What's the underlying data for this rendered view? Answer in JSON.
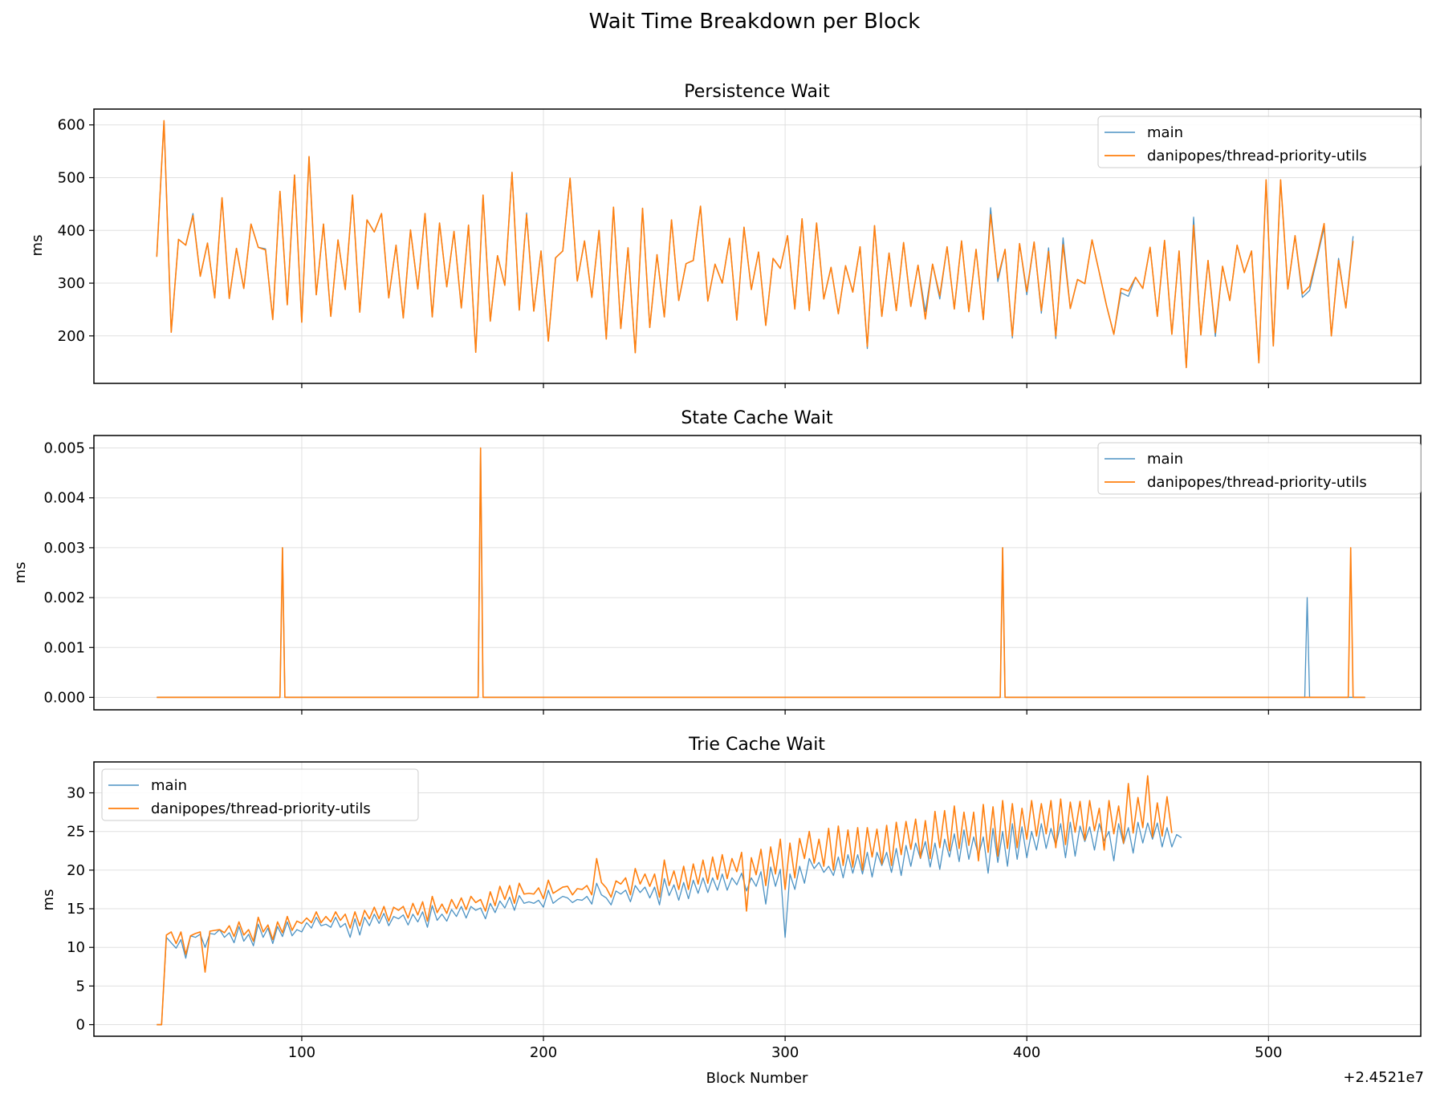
{
  "figure": {
    "title": "Wait Time Breakdown per Block",
    "xlabel": "Block Number",
    "offset_label": "+2.4521e7"
  },
  "colors": {
    "main": "#1f77b4",
    "branch": "#ff7f0e",
    "grid": "#e0e0e0"
  },
  "chart_data": [
    {
      "type": "line",
      "title": "Persistence Wait",
      "ylabel": "ms",
      "xlim": [
        14,
        563
      ],
      "ylim": [
        110,
        630
      ],
      "xticks": [
        100,
        200,
        300,
        400,
        500
      ],
      "yticks": [
        200,
        300,
        400,
        500,
        600
      ],
      "grid": true,
      "legend_position": "upper right",
      "x": {
        "start": 40,
        "end": 540,
        "step": 3
      },
      "series": [
        {
          "name": "main",
          "values": [
            350,
            608,
            207,
            383,
            372,
            432,
            313,
            376,
            272,
            462,
            271,
            366,
            290,
            412,
            368,
            365,
            231,
            474,
            259,
            505,
            226,
            539,
            278,
            412,
            237,
            382,
            288,
            467,
            245,
            420,
            397,
            432,
            272,
            372,
            234,
            401,
            289,
            432,
            236,
            414,
            293,
            398,
            253,
            410,
            169,
            467,
            228,
            352,
            296,
            510,
            249,
            433,
            247,
            361,
            190,
            348,
            361,
            499,
            304,
            380,
            273,
            400,
            194,
            444,
            214,
            367,
            168,
            442,
            216,
            354,
            236,
            420,
            267,
            337,
            343,
            446,
            266,
            336,
            300,
            385,
            230,
            406,
            288,
            359,
            220,
            347,
            328,
            390,
            251,
            422,
            248,
            414,
            270,
            330,
            242,
            333,
            283,
            369,
            176,
            409,
            237,
            357,
            248,
            377,
            256,
            334,
            246,
            336,
            270,
            369,
            251,
            380,
            246,
            364,
            231,
            443,
            303,
            364,
            196,
            375,
            278,
            378,
            243,
            367,
            195,
            386,
            252,
            307,
            299,
            382,
            320,
            257,
            203,
            282,
            275,
            311,
            290,
            368,
            237,
            381,
            203,
            361,
            140,
            425,
            202,
            343,
            199,
            332,
            267,
            372,
            320,
            361,
            149,
            494,
            181,
            494,
            289,
            390,
            273,
            286,
            345,
            405,
            200,
            347,
            253,
            389
          ]
        },
        {
          "name": "danipopes/thread-priority-utils",
          "values": [
            350,
            608,
            207,
            383,
            372,
            428,
            313,
            376,
            272,
            462,
            271,
            366,
            290,
            412,
            368,
            363,
            231,
            474,
            259,
            505,
            226,
            540,
            278,
            412,
            237,
            382,
            288,
            467,
            245,
            420,
            397,
            432,
            272,
            372,
            234,
            401,
            289,
            432,
            236,
            414,
            293,
            398,
            253,
            410,
            169,
            467,
            228,
            352,
            296,
            510,
            249,
            430,
            247,
            361,
            190,
            348,
            361,
            499,
            304,
            380,
            273,
            400,
            194,
            444,
            214,
            367,
            168,
            442,
            216,
            354,
            236,
            420,
            267,
            337,
            343,
            446,
            266,
            336,
            300,
            385,
            230,
            406,
            288,
            359,
            220,
            347,
            328,
            390,
            251,
            422,
            248,
            414,
            270,
            330,
            242,
            333,
            283,
            369,
            180,
            409,
            237,
            357,
            248,
            377,
            256,
            334,
            232,
            336,
            276,
            369,
            251,
            380,
            246,
            364,
            231,
            430,
            310,
            364,
            200,
            375,
            284,
            378,
            248,
            360,
            200,
            373,
            252,
            307,
            299,
            382,
            320,
            257,
            203,
            290,
            285,
            311,
            290,
            368,
            237,
            381,
            203,
            361,
            140,
            410,
            202,
            343,
            206,
            332,
            267,
            372,
            320,
            361,
            149,
            496,
            181,
            496,
            289,
            390,
            280,
            294,
            350,
            413,
            200,
            343,
            253,
            380
          ]
        }
      ]
    },
    {
      "type": "line",
      "title": "State Cache Wait",
      "ylabel": "ms",
      "xlim": [
        14,
        563
      ],
      "ylim": [
        -0.00025,
        0.00525
      ],
      "xticks": [
        100,
        200,
        300,
        400,
        500
      ],
      "yticks": [
        0.0,
        0.001,
        0.002,
        0.003,
        0.004,
        0.005
      ],
      "ytick_labels": [
        "0.000",
        "0.001",
        "0.002",
        "0.003",
        "0.004",
        "0.005"
      ],
      "grid": true,
      "legend_position": "upper right",
      "x": {
        "start": 40,
        "end": 540,
        "step": 1
      },
      "series": [
        {
          "name": "main",
          "spikes": [
            [
              92,
              0.003
            ],
            [
              174,
              0.005
            ],
            [
              390,
              0.003
            ],
            [
              516,
              0.002
            ]
          ]
        },
        {
          "name": "danipopes/thread-priority-utils",
          "spikes": [
            [
              92,
              0.003
            ],
            [
              174,
              0.005
            ],
            [
              390,
              0.003
            ],
            [
              534,
              0.003
            ]
          ]
        }
      ]
    },
    {
      "type": "line",
      "title": "Trie Cache Wait",
      "ylabel": "ms",
      "xlim": [
        14,
        563
      ],
      "ylim": [
        -1.5,
        34
      ],
      "xticks": [
        100,
        200,
        300,
        400,
        500
      ],
      "yticks": [
        0,
        5,
        10,
        15,
        20,
        25,
        30
      ],
      "grid": true,
      "legend_position": "upper left",
      "x": {
        "start": 40,
        "end": 540,
        "step": 2
      },
      "series": [
        {
          "name": "main",
          "values": [
            0,
            0,
            11.3,
            10.6,
            9.9,
            11.0,
            8.6,
            11.5,
            11.3,
            11.7,
            10.0,
            11.8,
            11.7,
            12.3,
            11.3,
            11.9,
            10.6,
            12.7,
            10.8,
            11.7,
            10.2,
            13.0,
            11.3,
            12.5,
            10.5,
            12.7,
            11.4,
            13.3,
            11.5,
            12.3,
            12.0,
            13.2,
            12.5,
            13.9,
            12.8,
            13.0,
            12.6,
            13.9,
            12.6,
            13.1,
            11.3,
            13.7,
            11.6,
            13.9,
            12.8,
            14.3,
            13.1,
            14.4,
            12.8,
            14.0,
            13.7,
            14.2,
            12.9,
            14.3,
            13.3,
            14.6,
            12.6,
            15.4,
            13.5,
            14.3,
            13.4,
            14.9,
            14.0,
            15.3,
            13.8,
            15.3,
            14.8,
            15.1,
            13.7,
            15.7,
            14.5,
            16.0,
            15.1,
            16.5,
            14.8,
            16.7,
            15.7,
            15.9,
            15.7,
            16.1,
            15.2,
            17.4,
            15.7,
            16.2,
            16.6,
            16.4,
            15.8,
            16.2,
            16.1,
            16.6,
            15.6,
            18.3,
            16.8,
            16.4,
            15.5,
            17.3,
            16.9,
            17.4,
            15.9,
            18.0,
            17.1,
            17.8,
            16.4,
            17.8,
            15.5,
            18.9,
            16.7,
            18.1,
            16.1,
            18.4,
            16.3,
            18.7,
            17.0,
            19.0,
            17.1,
            19.0,
            17.4,
            19.5,
            17.4,
            19.0,
            18.1,
            19.6,
            17.3,
            19.0,
            17.9,
            19.8,
            15.6,
            20.4,
            17.9,
            20.1,
            11.3,
            19.5,
            17.5,
            20.5,
            18.3,
            21.5,
            20.2,
            21.0,
            19.7,
            20.5,
            19.3,
            21.7,
            19.0,
            22.0,
            19.6,
            22.0,
            19.5,
            22.3,
            19.1,
            22.3,
            20.6,
            22.3,
            19.7,
            22.8,
            19.3,
            23.2,
            20.5,
            23.5,
            21.5,
            23.7,
            20.4,
            23.5,
            20.1,
            24.0,
            21.7,
            24.7,
            21.1,
            25.2,
            21.4,
            24.3,
            21.9,
            24.3,
            19.6,
            25.4,
            21.0,
            25.0,
            20.5,
            26.0,
            21.4,
            25.6,
            21.6,
            25.0,
            22.6,
            26.0,
            22.8,
            25.4,
            23.2,
            26.0,
            21.6,
            26.2,
            21.8,
            25.7,
            23.7,
            25.6,
            22.6,
            26.0,
            23.8,
            25.0,
            21.2,
            26.0,
            23.4,
            25.5,
            22.2,
            26.2,
            23.5,
            26.1,
            24.0,
            26.1,
            23.0,
            25.5,
            23.0,
            24.6,
            24.2
          ]
        },
        {
          "name": "danipopes/thread-priority-utils",
          "values": [
            0,
            0,
            11.6,
            12.0,
            10.5,
            12.0,
            9.1,
            11.5,
            11.8,
            12.0,
            6.8,
            12.1,
            12.2,
            12.3,
            11.9,
            12.8,
            11.4,
            13.3,
            11.6,
            12.3,
            10.8,
            13.9,
            12.0,
            12.9,
            11.0,
            13.3,
            11.9,
            14.0,
            12.2,
            13.4,
            13.1,
            13.8,
            13.2,
            14.6,
            13.2,
            14.0,
            13.3,
            14.6,
            13.5,
            14.3,
            12.5,
            14.6,
            12.8,
            14.8,
            13.7,
            15.2,
            13.7,
            15.3,
            13.4,
            15.2,
            14.8,
            15.3,
            13.8,
            15.7,
            14.2,
            15.9,
            13.4,
            16.6,
            14.5,
            15.6,
            14.4,
            16.2,
            15.0,
            16.4,
            14.9,
            16.6,
            15.8,
            16.2,
            14.7,
            17.2,
            15.4,
            17.9,
            16.2,
            18.0,
            15.7,
            18.3,
            16.9,
            17.0,
            16.9,
            17.7,
            16.3,
            18.7,
            17.0,
            17.4,
            17.8,
            17.9,
            16.8,
            17.6,
            17.5,
            18.0,
            16.8,
            21.5,
            18.4,
            17.7,
            16.5,
            18.6,
            18.2,
            19.0,
            16.8,
            20.2,
            18.2,
            19.5,
            17.9,
            19.5,
            16.5,
            21.3,
            18.0,
            19.9,
            17.5,
            20.5,
            17.5,
            20.8,
            18.2,
            21.3,
            18.3,
            21.7,
            18.8,
            22.0,
            18.9,
            21.5,
            19.8,
            22.3,
            14.7,
            21.6,
            19.4,
            22.7,
            18.0,
            23.0,
            19.5,
            24.0,
            17.5,
            23.5,
            19.0,
            24.1,
            21.5,
            25.0,
            20.9,
            24.0,
            20.5,
            25.4,
            20.0,
            25.7,
            20.6,
            25.2,
            20.4,
            25.5,
            20.0,
            25.5,
            21.7,
            25.3,
            20.8,
            25.8,
            20.6,
            26.2,
            22.0,
            26.3,
            22.7,
            26.6,
            21.6,
            26.4,
            21.5,
            27.6,
            22.9,
            27.7,
            22.5,
            28.3,
            22.8,
            27.5,
            23.2,
            27.5,
            21.2,
            28.5,
            22.3,
            28.2,
            21.8,
            29.0,
            22.8,
            28.6,
            22.9,
            28.0,
            24.0,
            29.0,
            24.4,
            28.6,
            24.7,
            29.0,
            22.9,
            29.2,
            23.3,
            28.8,
            24.9,
            28.9,
            23.9,
            29.0,
            25.1,
            28.0,
            22.6,
            29.0,
            24.7,
            28.3,
            23.5,
            31.2,
            24.8,
            29.4,
            25.5,
            32.2,
            24.3,
            28.7,
            24.4,
            29.5,
            24.8
          ]
        }
      ]
    }
  ]
}
